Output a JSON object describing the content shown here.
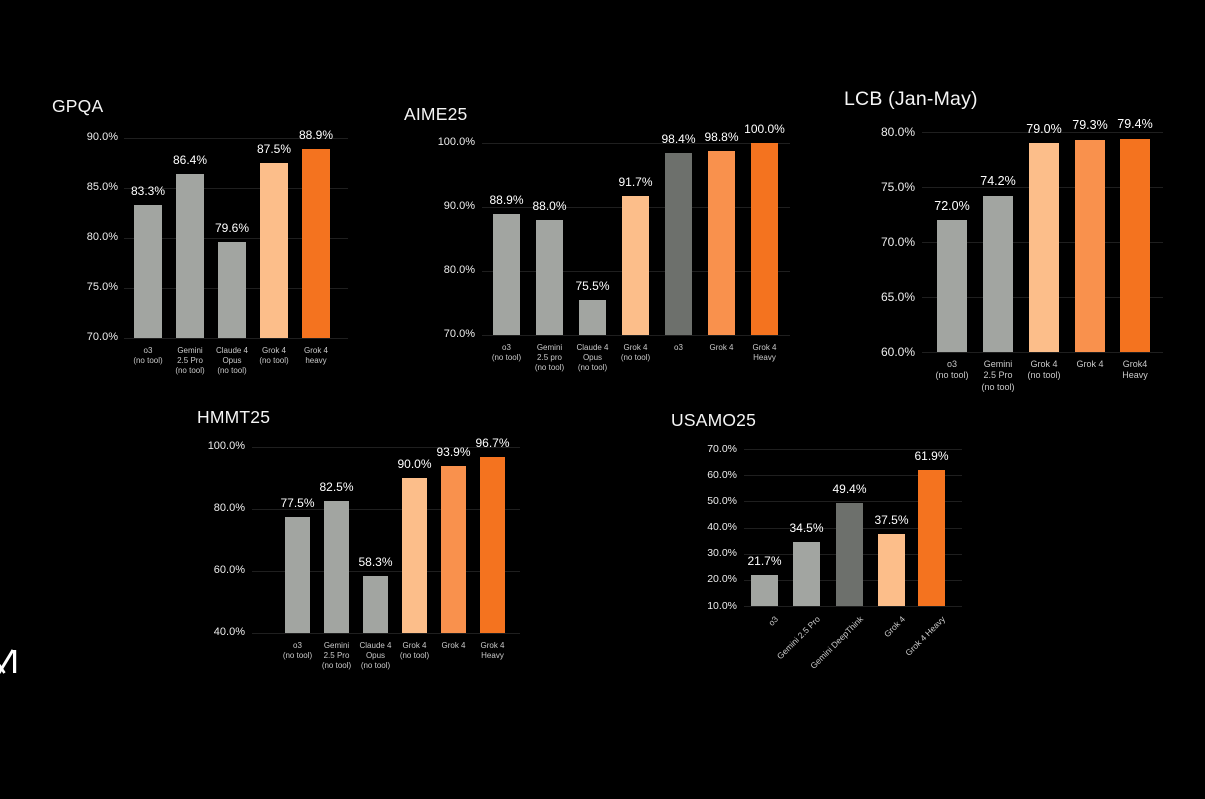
{
  "page": {
    "background": "#000000"
  },
  "logo": {
    "icon": "xai-logo-partial",
    "color": "#ffffff"
  },
  "palette": {
    "gray": "#a2a5a1",
    "gray_dark": "#6d706c",
    "orange_light": "#fcbe8a",
    "orange_mid": "#f9914d",
    "orange_heavy": "#f4731f",
    "text_primary": "#f5f5f5",
    "text_secondary": "#c9c9c9",
    "grid": "rgba(255,255,255,0.12)"
  },
  "chart_data": [
    {
      "id": "gpqa",
      "type": "bar",
      "title": "GPQA",
      "xlabel": "",
      "ylabel": "",
      "ylim": [
        70,
        90
      ],
      "grid": true,
      "legend": "none",
      "ytick_values": [
        90,
        85,
        80,
        75,
        70
      ],
      "ytick_labels": [
        "90.0%",
        "85.0%",
        "80.0%",
        "75.0%",
        "70.0%"
      ],
      "categories": [
        "o3\n(no tool)",
        "Gemini\n2.5 Pro\n(no tool)",
        "Claude 4\nOpus\n(no tool)",
        "Grok 4\n(no tool)",
        "Grok 4\nheavy"
      ],
      "values": [
        83.3,
        86.4,
        79.6,
        87.5,
        88.9
      ],
      "value_labels": [
        "83.3%",
        "86.4%",
        "79.6%",
        "87.5%",
        "88.9%"
      ],
      "bar_colors": [
        "gray",
        "gray",
        "gray",
        "orange_light",
        "orange_heavy"
      ]
    },
    {
      "id": "aime25",
      "type": "bar",
      "title": "AIME25",
      "xlabel": "",
      "ylabel": "",
      "ylim": [
        70,
        100
      ],
      "grid": true,
      "legend": "none",
      "ytick_values": [
        100,
        90,
        80,
        70
      ],
      "ytick_labels": [
        "100.0%",
        "90.0%",
        "80.0%",
        "70.0%"
      ],
      "categories": [
        "o3\n(no tool)",
        "Gemini\n2.5 pro\n(no tool)",
        "Claude 4\nOpus\n(no tool)",
        "Grok 4\n(no tool)",
        "o3",
        "Grok 4",
        "Grok 4\nHeavy"
      ],
      "values": [
        88.9,
        88.0,
        75.5,
        91.7,
        98.4,
        98.8,
        100.0
      ],
      "value_labels": [
        "88.9%",
        "88.0%",
        "75.5%",
        "91.7%",
        "98.4%",
        "98.8%",
        "100.0%"
      ],
      "bar_colors": [
        "gray",
        "gray",
        "gray",
        "orange_light",
        "gray_dark",
        "orange_mid",
        "orange_heavy"
      ]
    },
    {
      "id": "lcb-jan-may",
      "type": "bar",
      "title": "LCB (Jan-May)",
      "xlabel": "",
      "ylabel": "",
      "ylim": [
        60,
        80
      ],
      "grid": true,
      "legend": "none",
      "ytick_values": [
        80,
        75,
        70,
        65,
        60
      ],
      "ytick_labels": [
        "80.0%",
        "75.0%",
        "70.0%",
        "65.0%",
        "60.0%"
      ],
      "categories": [
        "o3\n(no tool)",
        "Gemini\n2.5 Pro\n(no tool)",
        "Grok 4\n(no tool)",
        "Grok 4",
        "Grok4\nHeavy"
      ],
      "values": [
        72.0,
        74.2,
        79.0,
        79.3,
        79.4
      ],
      "value_labels": [
        "72.0%",
        "74.2%",
        "79.0%",
        "79.3%",
        "79.4%"
      ],
      "bar_colors": [
        "gray",
        "gray",
        "orange_light",
        "orange_mid",
        "orange_heavy"
      ]
    },
    {
      "id": "hmmt25",
      "type": "bar",
      "title": "HMMT25",
      "xlabel": "",
      "ylabel": "",
      "ylim": [
        40,
        100
      ],
      "grid": true,
      "legend": "none",
      "ytick_values": [
        100,
        80,
        60,
        40
      ],
      "ytick_labels": [
        "100.0%",
        "80.0%",
        "60.0%",
        "40.0%"
      ],
      "categories": [
        "o3\n(no tool)",
        "Gemini\n2.5 Pro\n(no tool)",
        "Claude 4\nOpus\n(no tool)",
        "Grok 4\n(no tool)",
        "Grok 4",
        "Grok 4\nHeavy"
      ],
      "values": [
        77.5,
        82.5,
        58.3,
        90.0,
        93.9,
        96.7
      ],
      "value_labels": [
        "77.5%",
        "82.5%",
        "58.3%",
        "90.0%",
        "93.9%",
        "96.7%"
      ],
      "bar_colors": [
        "gray",
        "gray",
        "gray",
        "orange_light",
        "orange_mid",
        "orange_heavy"
      ]
    },
    {
      "id": "usamo25",
      "type": "bar",
      "title": "USAMO25",
      "xlabel": "",
      "ylabel": "",
      "ylim": [
        10,
        70
      ],
      "grid": true,
      "legend": "none",
      "ytick_values": [
        70,
        60,
        50,
        40,
        30,
        20,
        10
      ],
      "ytick_labels": [
        "70.0%",
        "60.0%",
        "50.0%",
        "40.0%",
        "30.0%",
        "20.0%",
        "10.0%"
      ],
      "categories": [
        "o3",
        "Gemini 2.5 Pro",
        "Gemini DeepThink",
        "Grok 4",
        "Grok 4 Heavy"
      ],
      "values": [
        21.7,
        34.5,
        49.4,
        37.5,
        61.9
      ],
      "value_labels": [
        "21.7%",
        "34.5%",
        "49.4%",
        "37.5%",
        "61.9%"
      ],
      "bar_colors": [
        "gray",
        "gray",
        "gray_dark",
        "orange_light",
        "orange_heavy"
      ]
    }
  ]
}
